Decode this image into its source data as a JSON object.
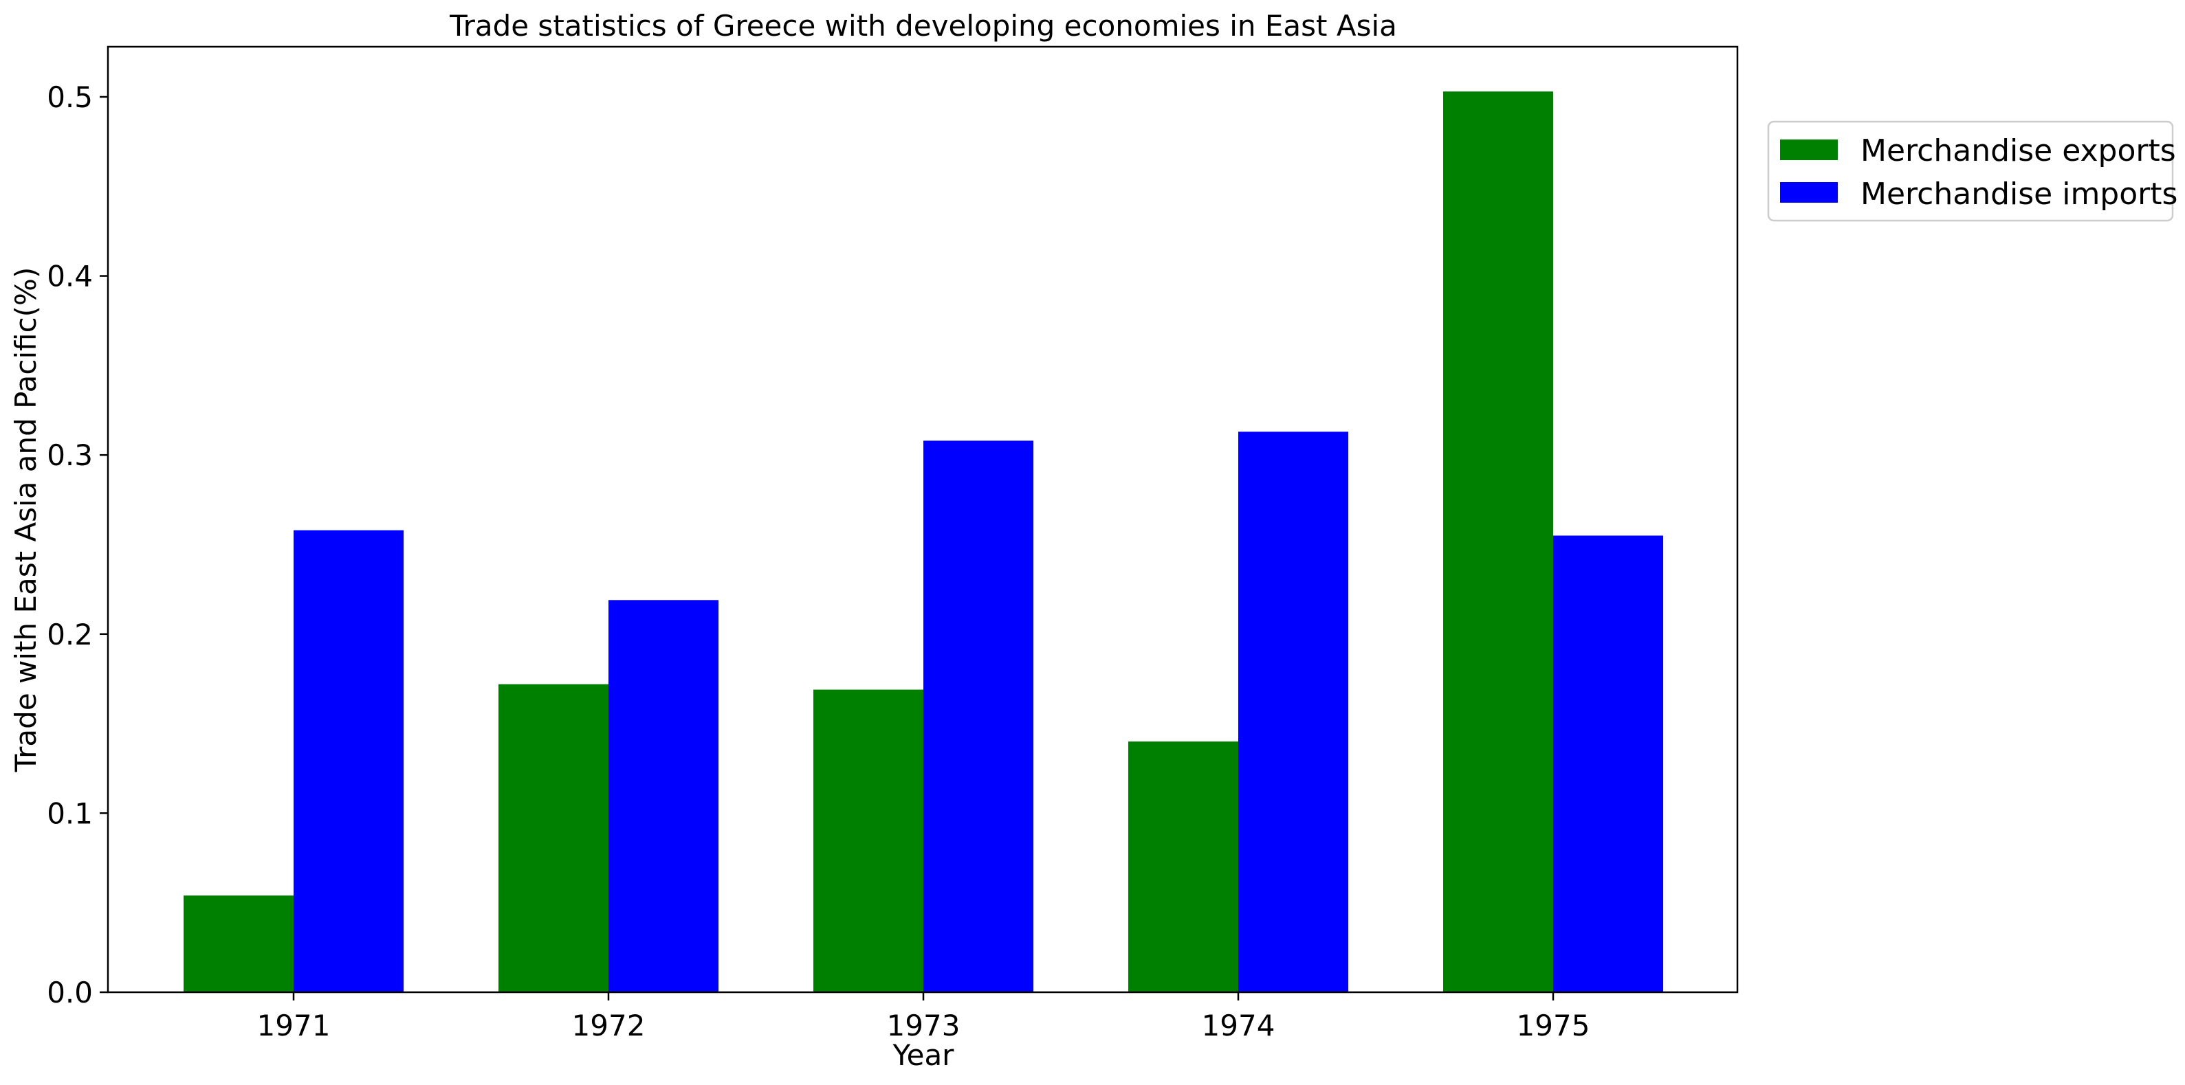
{
  "chart_data": {
    "type": "bar",
    "title": "Trade statistics of Greece with developing economies in East Asia",
    "xlabel": "Year",
    "ylabel": "Trade with East Asia and Pacific(%)",
    "categories": [
      "1971",
      "1972",
      "1973",
      "1974",
      "1975"
    ],
    "series": [
      {
        "name": "Merchandise exports",
        "color": "#008000",
        "values": [
          0.054,
          0.172,
          0.169,
          0.14,
          0.503
        ]
      },
      {
        "name": "Merchandise imports",
        "color": "#0000ff",
        "values": [
          0.258,
          0.219,
          0.308,
          0.313,
          0.255
        ]
      }
    ],
    "ylim": [
      0,
      0.528
    ],
    "yticks": [
      "0.0",
      "0.1",
      "0.2",
      "0.3",
      "0.4",
      "0.5"
    ],
    "grid": false,
    "legend_position": "outside-top-right"
  }
}
